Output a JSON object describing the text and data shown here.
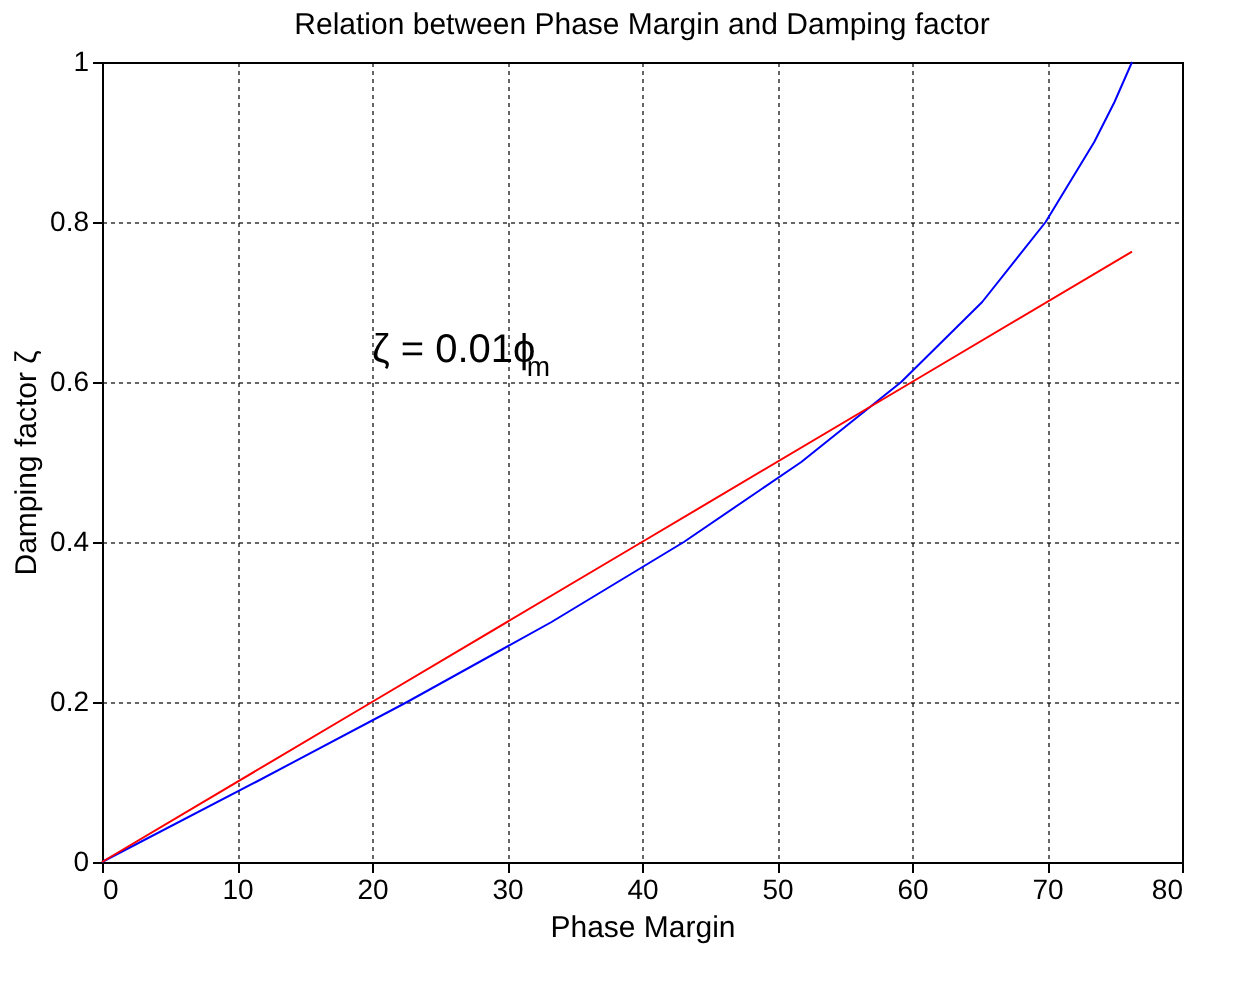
{
  "chart_data": {
    "type": "line",
    "title": "Relation between Phase Margin and Damping factor",
    "xlabel": "Phase Margin",
    "ylabel": "Damping factor ζ",
    "xlim": [
      0,
      80
    ],
    "ylim": [
      0,
      1
    ],
    "xticks": [
      0,
      10,
      20,
      30,
      40,
      50,
      60,
      70,
      80
    ],
    "yticks": [
      0,
      0.2,
      0.4,
      0.6,
      0.8,
      1
    ],
    "grid": true,
    "line_style": "solid",
    "marker": "none",
    "series": [
      {
        "color": "#0000ff",
        "x": [
          0,
          11.4,
          22.6,
          33.3,
          43.1,
          51.8,
          59.2,
          65.2,
          69.9,
          73.5,
          75.0,
          76.3
        ],
        "values": [
          0,
          0.1,
          0.2,
          0.3,
          0.4,
          0.5,
          0.6,
          0.7,
          0.8,
          0.9,
          0.95,
          1.0
        ]
      },
      {
        "color": "#ff0000",
        "x": [
          0,
          20,
          40,
          60,
          76.3
        ],
        "values": [
          0,
          0.2,
          0.4,
          0.6,
          0.763
        ]
      }
    ],
    "annotations": [
      "ζ = 0.01ϕ$_{m}$"
    ]
  }
}
